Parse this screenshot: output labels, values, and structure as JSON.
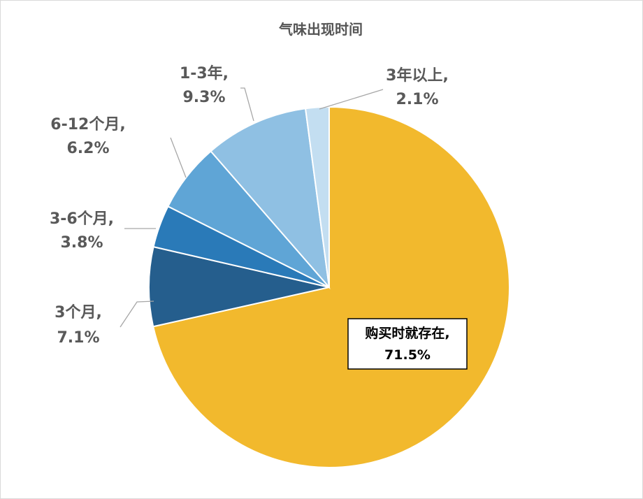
{
  "chart_data": {
    "type": "pie",
    "title": "气味出现时间",
    "slices": [
      {
        "label": "购买时就存在",
        "value": 71.5,
        "display": "71.5%",
        "color": "#F2B92D"
      },
      {
        "label": "3个月",
        "value": 7.1,
        "display": "7.1%",
        "color": "#255E8D"
      },
      {
        "label": "3-6个月",
        "value": 3.8,
        "display": "3.8%",
        "color": "#2A7AB8"
      },
      {
        "label": "6-12个月",
        "value": 6.2,
        "display": "6.2%",
        "color": "#5FA5D6"
      },
      {
        "label": "1-3年",
        "value": 9.3,
        "display": "9.3%",
        "color": "#8FC0E3"
      },
      {
        "label": "3年以上",
        "value": 2.1,
        "display": "2.1%",
        "color": "#C3DEF1"
      }
    ],
    "start_angle": "12 o'clock, clockwise",
    "data_labels": "category and percentage, outside with leader lines",
    "legend": "none"
  }
}
